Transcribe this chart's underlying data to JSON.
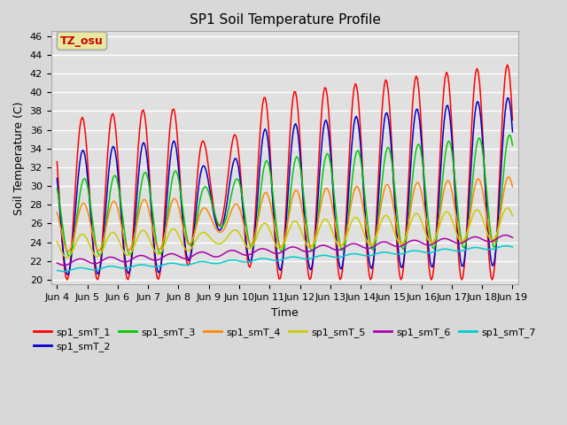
{
  "title": "SP1 Soil Temperature Profile",
  "xlabel": "Time",
  "ylabel": "Soil Temperature (C)",
  "ylim": [
    19.5,
    46.5
  ],
  "yticks": [
    20,
    22,
    24,
    26,
    28,
    30,
    32,
    34,
    36,
    38,
    40,
    42,
    44,
    46
  ],
  "xtick_labels": [
    "Jun 4",
    "Jun 5",
    "Jun 6",
    "Jun 7",
    "Jun 8",
    "Jun 9",
    "Jun 10",
    "Jun 11",
    "Jun 12",
    "Jun 13",
    "Jun 14",
    "Jun 15",
    "Jun 16",
    "Jun 17",
    "Jun 18",
    "Jun 19"
  ],
  "series_colors": [
    "#ff0000",
    "#0000cc",
    "#00cc00",
    "#ff8800",
    "#cccc00",
    "#aa00aa",
    "#00cccc"
  ],
  "series_labels": [
    "sp1_smT_1",
    "sp1_smT_2",
    "sp1_smT_3",
    "sp1_smT_4",
    "sp1_smT_5",
    "sp1_smT_6",
    "sp1_smT_7"
  ],
  "annotation_text": "TZ_osu",
  "annotation_color": "#cc0000",
  "annotation_bg": "#e8e8a0",
  "annotation_border": "#aaaaaa",
  "background_color": "#e0e0e0",
  "plot_bg_color": "#d8d8d8",
  "grid_color": "#ffffff",
  "title_fontsize": 11,
  "label_fontsize": 9,
  "tick_fontsize": 8
}
